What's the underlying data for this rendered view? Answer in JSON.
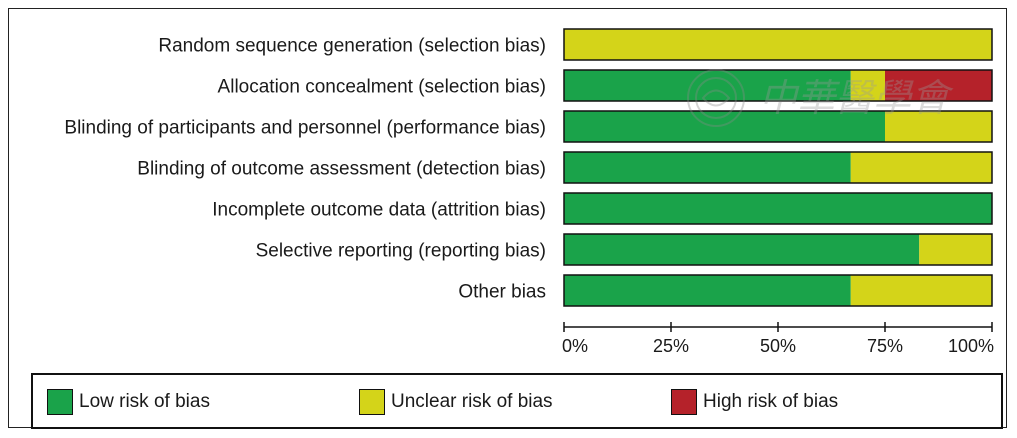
{
  "chart_data": {
    "type": "bar",
    "orientation": "horizontal",
    "stacked": true,
    "categories": [
      "Random sequence generation (selection bias)",
      "Allocation concealment (selection bias)",
      "Blinding of participants and personnel (performance bias)",
      "Blinding of outcome assessment (detection bias)",
      "Incomplete outcome data (attrition bias)",
      "Selective reporting (reporting bias)",
      "Other bias"
    ],
    "series": [
      {
        "name": "Low risk of bias",
        "color": "#1aa34a",
        "values": [
          0,
          67,
          75,
          67,
          100,
          83,
          67
        ]
      },
      {
        "name": "Unclear risk of bias",
        "color": "#d4d419",
        "values": [
          100,
          8,
          25,
          33,
          0,
          17,
          33
        ]
      },
      {
        "name": "High risk of bias",
        "color": "#b5222a",
        "values": [
          0,
          25,
          0,
          0,
          0,
          0,
          0
        ]
      }
    ],
    "xlim": [
      0,
      100
    ],
    "xticks": [
      "0%",
      "25%",
      "50%",
      "75%",
      "100%"
    ],
    "grid": false,
    "legend_position": "bottom"
  },
  "legend": {
    "low": "Low risk of bias",
    "unclear": "Unclear risk of bias",
    "high": "High risk of bias"
  },
  "watermark": {
    "icon": "society-seal-icon",
    "text": "中華醫學會"
  }
}
